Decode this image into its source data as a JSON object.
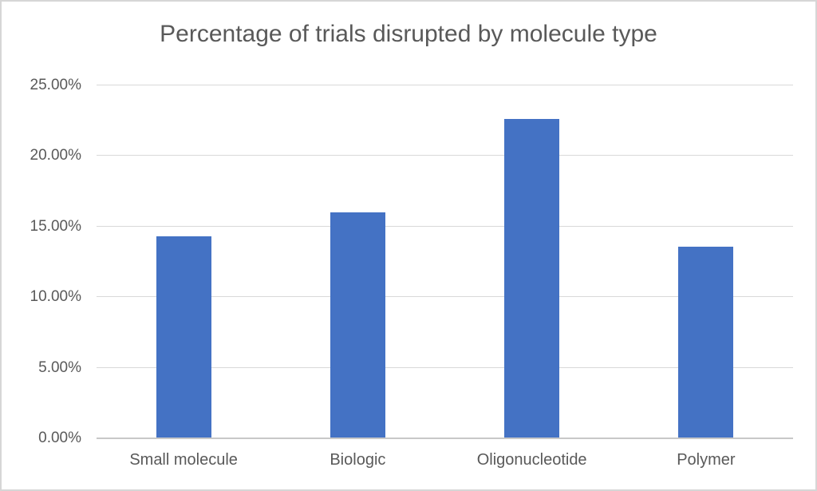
{
  "chart_data": {
    "type": "bar",
    "title": "Percentage of trials disrupted by molecule type",
    "categories": [
      "Small molecule",
      "Biologic",
      "Oligonucleotide",
      "Polymer"
    ],
    "values": [
      14.3,
      16.0,
      22.65,
      13.6
    ],
    "value_unit": "%",
    "xlabel": "",
    "ylabel": "",
    "ylim": [
      0,
      25
    ],
    "ytick_step": 5,
    "ytick_labels": [
      "0.00%",
      "5.00%",
      "10.00%",
      "15.00%",
      "20.00%",
      "25.00%"
    ],
    "grid": true,
    "legend": false,
    "colors": {
      "bar": "#4472C4",
      "text": "#595959",
      "gridline": "#d9d9d9",
      "axis_line": "#c8c8c8",
      "frame_border": "#d6d6d6",
      "background": "#ffffff"
    }
  }
}
